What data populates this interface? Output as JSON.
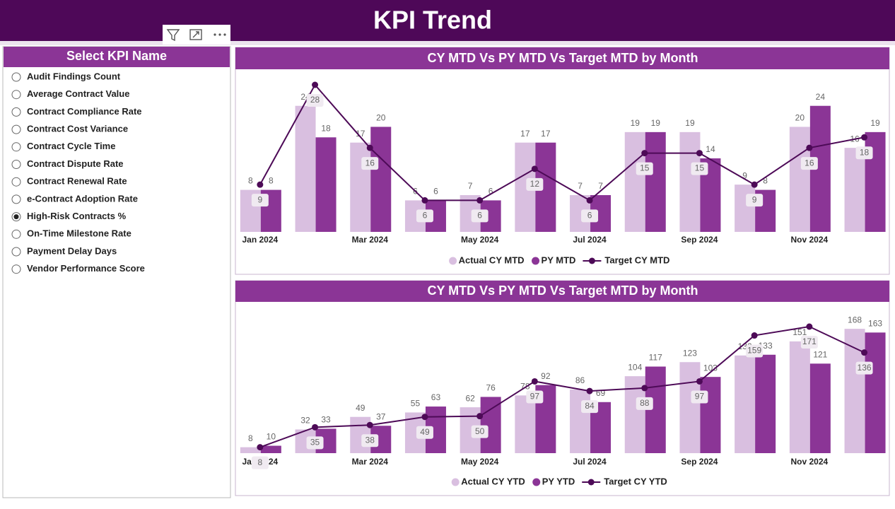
{
  "header": {
    "title": "KPI Trend"
  },
  "slicer": {
    "title": "Select KPI Name",
    "options": [
      {
        "label": "Audit Findings Count",
        "selected": false
      },
      {
        "label": "Average Contract Value",
        "selected": false
      },
      {
        "label": "Contract Compliance Rate",
        "selected": false
      },
      {
        "label": "Contract Cost Variance",
        "selected": false
      },
      {
        "label": "Contract Cycle Time",
        "selected": false
      },
      {
        "label": "Contract Dispute Rate",
        "selected": false
      },
      {
        "label": "Contract Renewal Rate",
        "selected": false
      },
      {
        "label": "e-Contract Adoption Rate",
        "selected": false
      },
      {
        "label": "High-Risk Contracts %",
        "selected": true
      },
      {
        "label": "On-Time Milestone Rate",
        "selected": false
      },
      {
        "label": "Payment Delay Days",
        "selected": false
      },
      {
        "label": "Vendor Performance Score",
        "selected": false
      }
    ]
  },
  "chart_data": [
    {
      "type": "combo",
      "title": "CY MTD Vs PY MTD Vs Target MTD by Month",
      "categories": [
        "Jan 2024",
        null,
        "Mar 2024",
        null,
        "May 2024",
        null,
        "Jul 2024",
        null,
        "Sep 2024",
        null,
        "Nov 2024",
        null
      ],
      "series": [
        {
          "name": "Actual CY MTD",
          "type": "bar",
          "color": "#d9bfe0",
          "values": [
            8,
            24,
            17,
            6,
            7,
            17,
            7,
            19,
            19,
            9,
            20,
            16
          ]
        },
        {
          "name": "PY MTD",
          "type": "bar",
          "color": "#8b3596",
          "values": [
            8,
            18,
            20,
            6,
            6,
            17,
            7,
            19,
            14,
            8,
            24,
            19
          ]
        },
        {
          "name": "Target CY MTD",
          "type": "line",
          "color": "#4d0a57",
          "values": [
            9,
            28,
            16,
            6,
            6,
            12,
            6,
            15,
            15,
            9,
            16,
            18
          ]
        }
      ]
    },
    {
      "type": "combo",
      "title": "CY MTD Vs PY MTD Vs Target MTD by Month",
      "categories": [
        "Jan 2024",
        null,
        "Mar 2024",
        null,
        "May 2024",
        null,
        "Jul 2024",
        null,
        "Sep 2024",
        null,
        "Nov 2024",
        null
      ],
      "series": [
        {
          "name": "Actual CY YTD",
          "type": "bar",
          "color": "#d9bfe0",
          "values": [
            8,
            32,
            49,
            55,
            62,
            78,
            86,
            104,
            123,
            132,
            151,
            168
          ]
        },
        {
          "name": "PY YTD",
          "type": "bar",
          "color": "#8b3596",
          "values": [
            10,
            33,
            37,
            63,
            76,
            92,
            69,
            117,
            103,
            133,
            121,
            163
          ]
        },
        {
          "name": "Target CY YTD",
          "type": "line",
          "color": "#4d0a57",
          "values": [
            8,
            35,
            38,
            49,
            50,
            97,
            84,
            88,
            97,
            159,
            171,
            136
          ]
        }
      ]
    }
  ]
}
